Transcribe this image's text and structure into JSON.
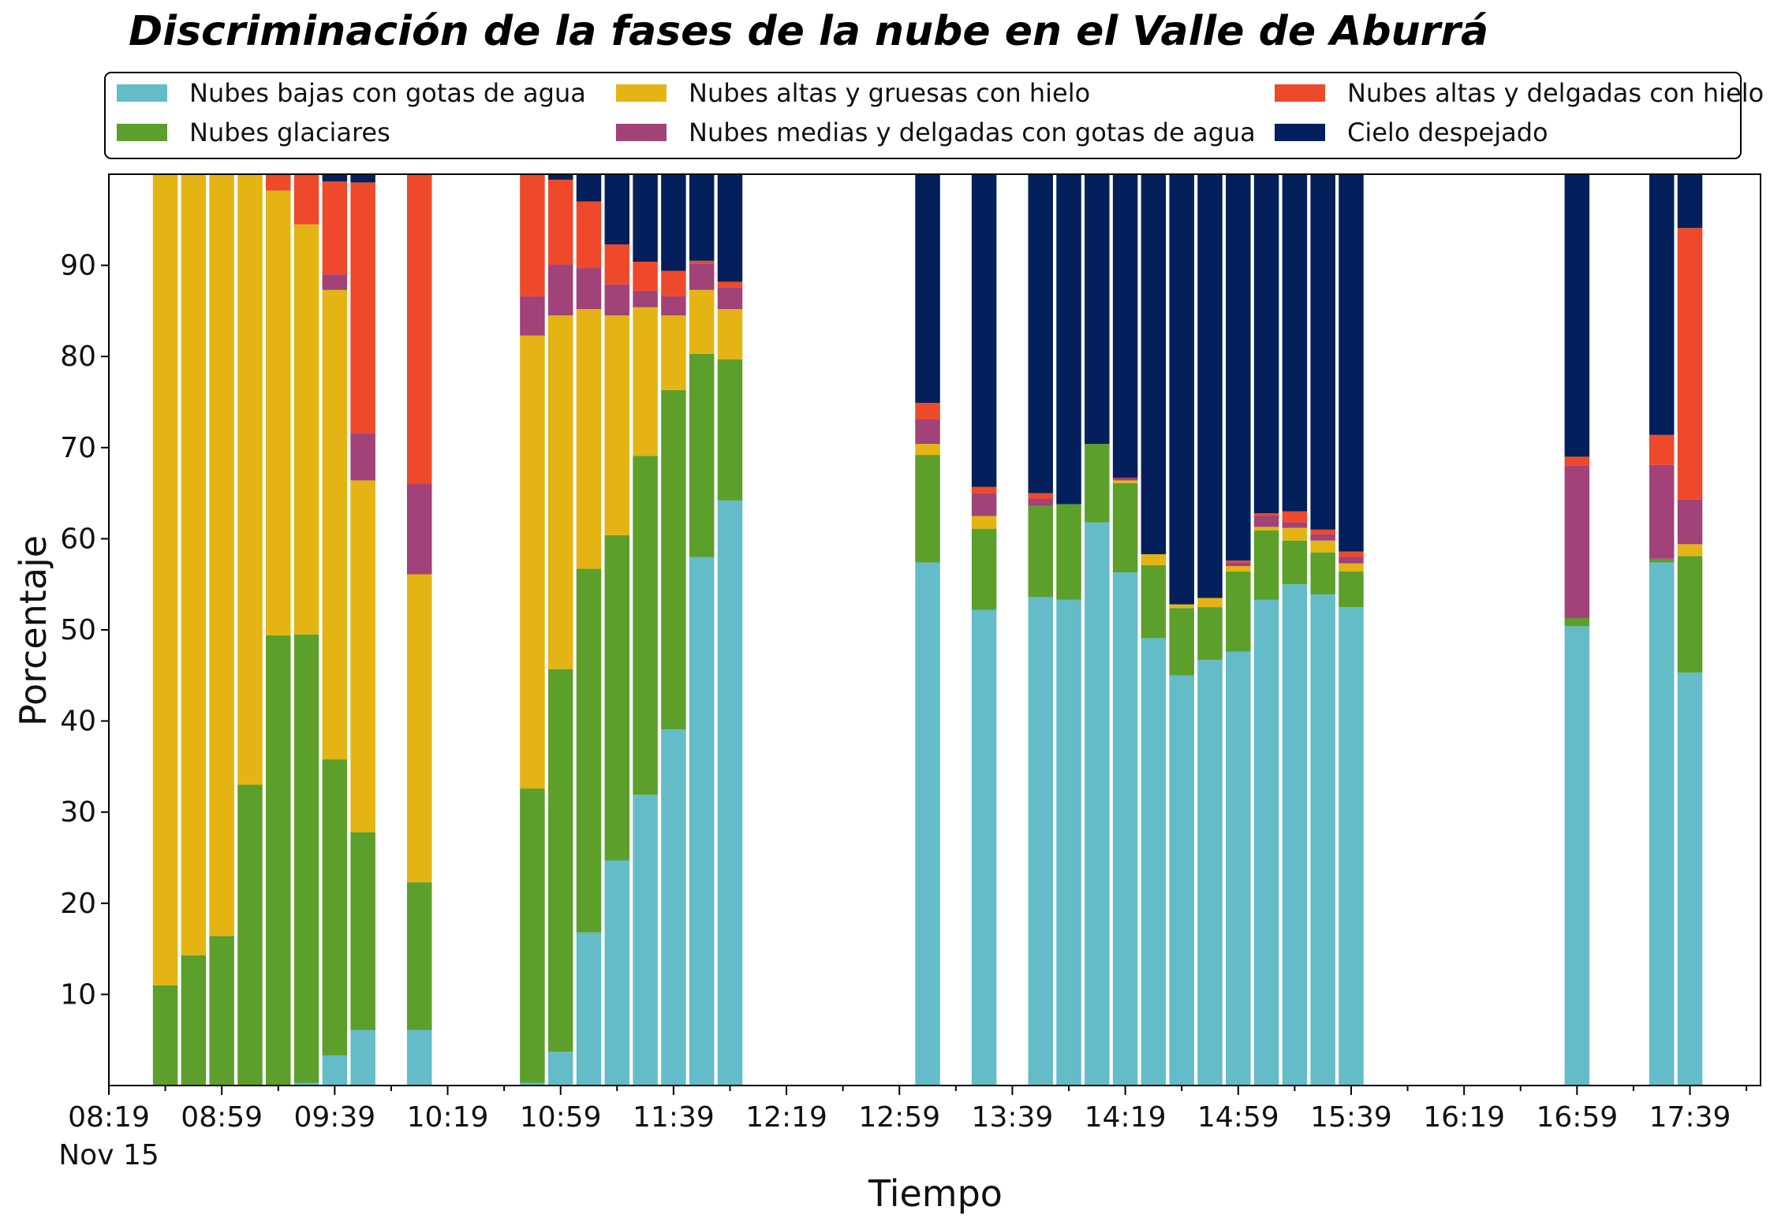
{
  "chart_data": {
    "type": "bar",
    "stacked": true,
    "title": "Discriminación de la fases de la nube en el Valle de Aburrá",
    "xlabel": "Tiempo",
    "ylabel": "Porcentaje",
    "ylim": [
      0,
      100
    ],
    "yticks": [
      10,
      20,
      30,
      40,
      50,
      60,
      70,
      80,
      90
    ],
    "x_start": "08:19",
    "x_end": "18:04",
    "bar_interval_minutes": 10,
    "xticks": [
      "08:19",
      "08:59",
      "09:39",
      "10:19",
      "10:59",
      "11:39",
      "12:19",
      "12:59",
      "13:39",
      "14:19",
      "14:59",
      "15:39",
      "16:19",
      "16:59",
      "17:39"
    ],
    "xtick_date": "Nov 15",
    "grid": false,
    "legend_position": "top",
    "categories": [
      "08:39",
      "08:49",
      "08:59",
      "09:09",
      "09:19",
      "09:29",
      "09:39",
      "09:49",
      "10:09",
      "10:49",
      "10:59",
      "11:09",
      "11:19",
      "11:29",
      "11:39",
      "11:49",
      "11:59",
      "13:09",
      "13:29",
      "13:49",
      "13:59",
      "14:09",
      "14:19",
      "14:29",
      "14:39",
      "14:49",
      "14:59",
      "15:09",
      "15:19",
      "15:29",
      "15:39",
      "16:59",
      "17:29",
      "17:39"
    ],
    "series": [
      {
        "name": "Nubes bajas con gotas de agua",
        "color": "#64bcc9",
        "values": [
          0,
          0,
          0,
          0,
          0,
          0.3,
          3.3,
          6.1,
          6.1,
          0.3,
          3.7,
          16.8,
          24.7,
          31.9,
          39.1,
          58.0,
          64.2,
          57.4,
          52.2,
          53.6,
          53.3,
          61.8,
          56.3,
          49.1,
          45.0,
          46.7,
          47.6,
          53.3,
          55.0,
          53.9,
          52.5,
          50.4,
          57.4,
          45.3
        ]
      },
      {
        "name": "Nubes glaciares",
        "color": "#5c9f2b",
        "values": [
          11.0,
          14.3,
          16.4,
          33.0,
          49.4,
          49.2,
          32.5,
          21.7,
          16.2,
          32.3,
          42.0,
          39.9,
          35.7,
          37.2,
          37.2,
          22.3,
          15.5,
          11.8,
          8.9,
          10.0,
          10.5,
          8.6,
          9.8,
          8.0,
          7.4,
          5.8,
          8.8,
          7.6,
          4.8,
          4.6,
          3.9,
          0.9,
          0.4,
          12.8
        ]
      },
      {
        "name": "Nubes altas y gruesas con hielo",
        "color": "#e4b414",
        "values": [
          89.0,
          85.7,
          83.6,
          67.0,
          48.8,
          45.0,
          51.5,
          38.6,
          33.8,
          49.7,
          38.8,
          28.5,
          24.1,
          16.3,
          8.2,
          7.0,
          5.5,
          1.2,
          1.4,
          0,
          0,
          0,
          0.3,
          1.2,
          0.4,
          1.0,
          0.6,
          0.4,
          1.4,
          1.3,
          0.9,
          0,
          0,
          1.3
        ]
      },
      {
        "name": "Nubes medias y delgadas con gotas de agua",
        "color": "#a14279",
        "values": [
          0,
          0,
          0,
          0,
          0,
          0,
          1.7,
          5.2,
          9.9,
          4.3,
          5.6,
          4.5,
          3.4,
          1.8,
          2.1,
          2.9,
          2.4,
          2.7,
          2.5,
          0.8,
          0,
          0,
          0.3,
          0,
          0,
          0,
          0.4,
          1.2,
          0.6,
          0.7,
          0.7,
          16.7,
          10.3,
          4.9
        ]
      },
      {
        "name": "Nubes altas y delgadas con hielo",
        "color": "#ee492a",
        "values": [
          0,
          0,
          0,
          0,
          1.8,
          5.5,
          10.2,
          27.5,
          33.9,
          13.4,
          9.3,
          7.3,
          4.4,
          3.2,
          2.8,
          0.3,
          0.6,
          1.8,
          0.7,
          0.6,
          0,
          0,
          0,
          0,
          0,
          0,
          0.2,
          0.3,
          1.2,
          0.5,
          0.6,
          1.0,
          3.3,
          29.8
        ]
      },
      {
        "name": "Cielo despejado",
        "color": "#03205c",
        "values": [
          0,
          0,
          0,
          0,
          0,
          0,
          0.8,
          0.9,
          0.1,
          0,
          0.6,
          3.0,
          7.7,
          9.6,
          10.6,
          9.5,
          11.8,
          25.1,
          34.3,
          35.0,
          36.2,
          29.6,
          33.3,
          41.7,
          47.2,
          46.5,
          42.4,
          37.2,
          37.0,
          39.0,
          41.4,
          31.0,
          28.6,
          5.9
        ]
      }
    ]
  }
}
